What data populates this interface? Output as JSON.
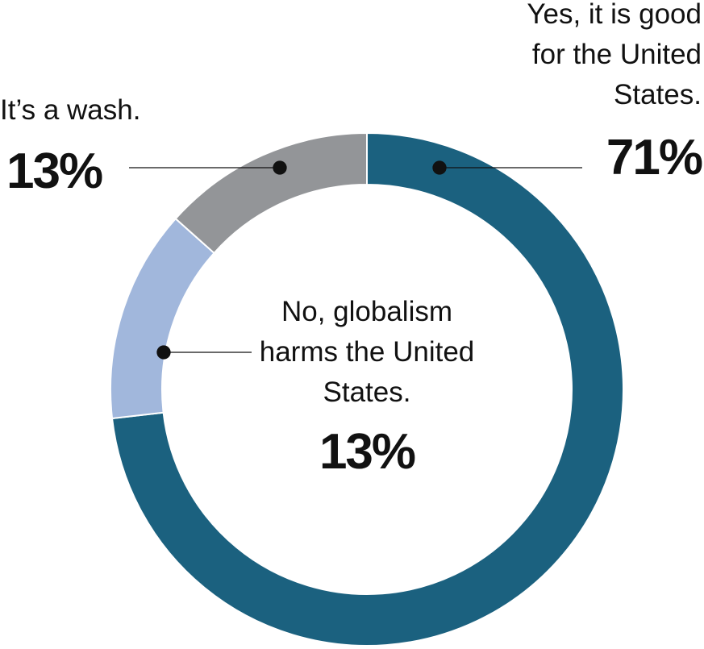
{
  "chart_data": {
    "type": "donut",
    "categories": [
      "Yes, it is good for the United States.",
      "No, globalism harms the United States.",
      "It’s a wash."
    ],
    "values": [
      71,
      13,
      13
    ],
    "value_labels": [
      "71%",
      "13%",
      "13%"
    ],
    "colors": [
      "#1b617f",
      "#a1b7dc",
      "#939598"
    ]
  }
}
